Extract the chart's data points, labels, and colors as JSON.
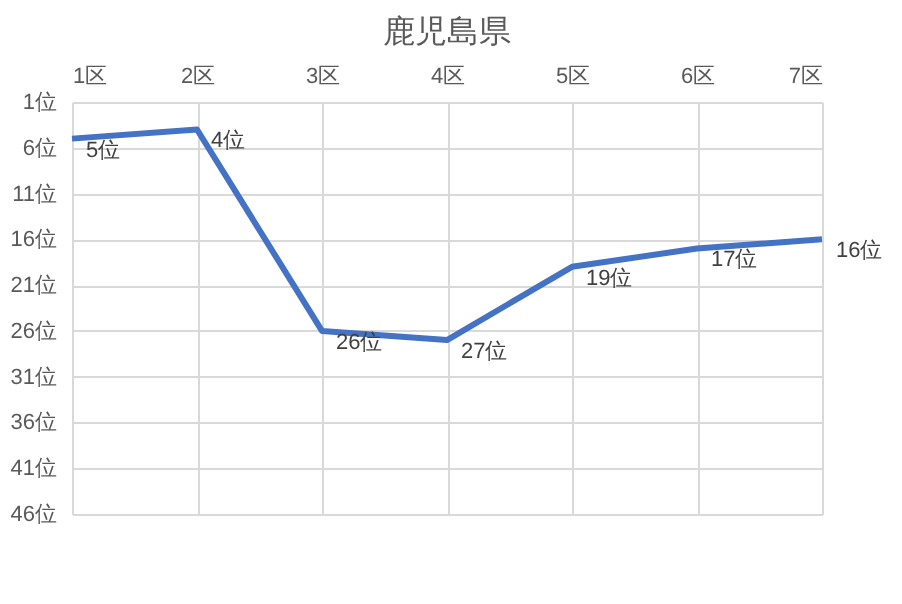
{
  "chart_data": {
    "type": "line",
    "title": "鹿児島県",
    "categories": [
      "1区",
      "2区",
      "3区",
      "4区",
      "5区",
      "6区",
      "7区"
    ],
    "series": [
      {
        "color": "#4472c4",
        "values": [
          5,
          4,
          26,
          27,
          19,
          17,
          16
        ],
        "value_labels": [
          "5位",
          "4位",
          "26位",
          "27位",
          "19位",
          "17位",
          "16位"
        ]
      }
    ],
    "ylim": [
      46,
      1
    ],
    "yticks": [
      {
        "value": 1,
        "label": "1位"
      },
      {
        "value": 6,
        "label": "6位"
      },
      {
        "value": 11,
        "label": "11位"
      },
      {
        "value": 16,
        "label": "16位"
      },
      {
        "value": 21,
        "label": "21位"
      },
      {
        "value": 26,
        "label": "26位"
      },
      {
        "value": 31,
        "label": "31位"
      },
      {
        "value": 36,
        "label": "36位"
      },
      {
        "value": 41,
        "label": "41位"
      },
      {
        "value": 46,
        "label": "46位"
      }
    ],
    "grid": true,
    "marker": "none",
    "line_style": "solid"
  }
}
